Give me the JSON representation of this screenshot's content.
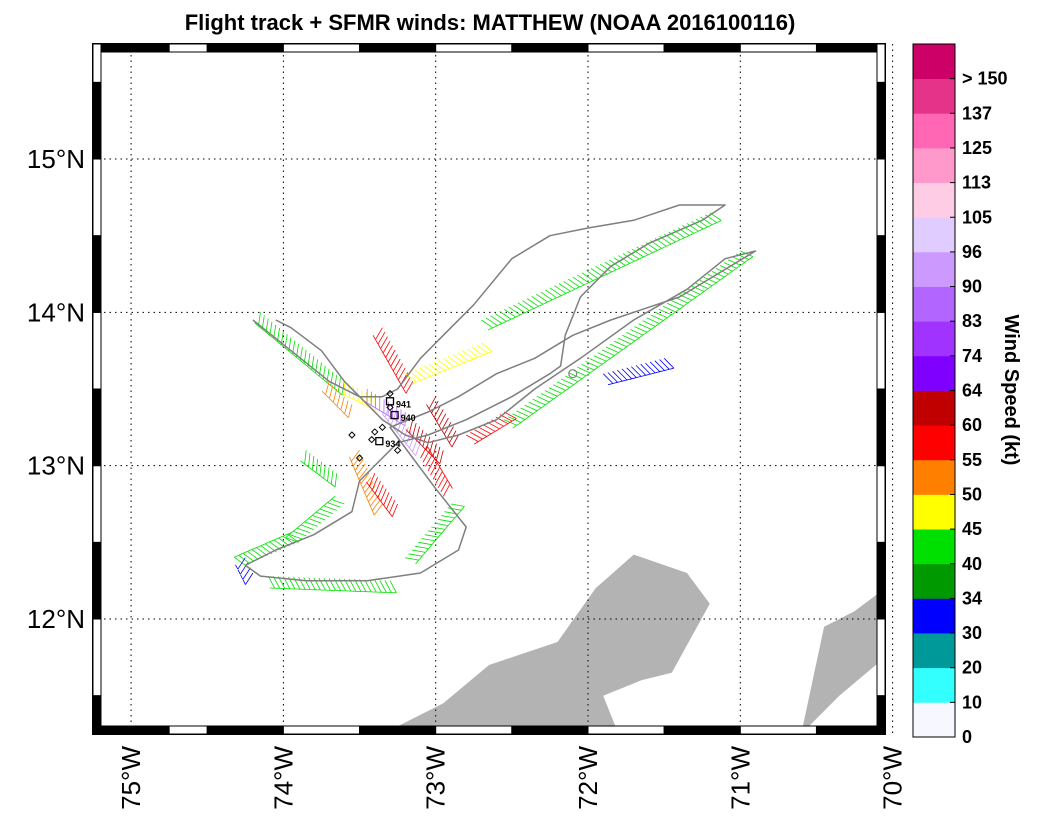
{
  "chart_data": {
    "type": "map",
    "title": "Flight track + SFMR winds: MATTHEW (NOAA 2016100116)",
    "x_ticks": [
      "75°W",
      "74°W",
      "73°W",
      "72°W",
      "71°W",
      "70°W"
    ],
    "x_tick_values": [
      -75,
      -74,
      -73,
      -72,
      -71,
      -70
    ],
    "y_ticks": [
      "12°N",
      "13°N",
      "14°N",
      "15°N"
    ],
    "y_tick_values": [
      12,
      13,
      14,
      15
    ],
    "xlim": [
      -75.25,
      -70.05
    ],
    "ylim": [
      11.25,
      15.75
    ],
    "grid": true,
    "colorbar": {
      "label": "Wind Speed (kt)",
      "levels": [
        "0",
        "10",
        "20",
        "30",
        "34",
        "40",
        "45",
        "50",
        "55",
        "60",
        "64",
        "74",
        "83",
        "90",
        "96",
        "105",
        "113",
        "125",
        "137",
        "> 150"
      ],
      "colors": [
        "#f7f8ff",
        "#33ffff",
        "#009999",
        "#0000ff",
        "#009900",
        "#00e000",
        "#ffff00",
        "#ff8000",
        "#ff0000",
        "#c00000",
        "#8000ff",
        "#a033ff",
        "#b366ff",
        "#cc99ff",
        "#e0ccff",
        "#ffcce6",
        "#ff99cc",
        "#ff66b3",
        "#e6338a",
        "#cc0066"
      ]
    },
    "land": [
      {
        "lon": [
          -73.35,
          -72.95,
          -72.65,
          -72.2,
          -71.95,
          -71.7,
          -71.35,
          -71.2,
          -71.45,
          -71.65,
          -71.9,
          -71.8,
          -73.35
        ],
        "lat": [
          11.25,
          11.45,
          11.7,
          11.85,
          12.2,
          12.42,
          12.3,
          12.1,
          11.65,
          11.6,
          11.5,
          11.25,
          11.25
        ]
      },
      {
        "lon": [
          -70.6,
          -70.35,
          -70.05,
          -70.05,
          -70.25,
          -70.45,
          -70.6
        ],
        "lat": [
          11.25,
          11.5,
          11.75,
          12.2,
          12.05,
          11.95,
          11.25
        ]
      }
    ],
    "flight_track": {
      "lon": [
        -74.2,
        -73.95,
        -73.7,
        -73.5,
        -73.35,
        -73.25,
        -73.1,
        -72.95,
        -72.75,
        -72.5,
        -72.25,
        -72.0,
        -71.7,
        -71.4,
        -71.1,
        -71.25,
        -71.6,
        -71.85,
        -72.05,
        -72.15,
        -72.18,
        -72.25,
        -72.5,
        -72.8,
        -73.05,
        -73.25,
        -73.3,
        -73.5,
        -73.55,
        -73.8,
        -74.05,
        -74.25,
        -74.15,
        -73.85,
        -73.45,
        -73.1,
        -72.85,
        -72.8,
        -73.0,
        -73.15,
        -73.3,
        -73.05,
        -72.85,
        -72.6,
        -72.35,
        -72.1,
        -71.85,
        -71.4,
        -70.9,
        -71.1,
        -71.35,
        -71.7,
        -72.05,
        -72.35,
        -72.6,
        -72.85,
        -73.05,
        -73.2,
        -73.35,
        -73.45,
        -73.6,
        -73.75,
        -73.95,
        -74.05
      ],
      "lat": [
        13.95,
        13.75,
        13.55,
        13.45,
        13.45,
        13.5,
        13.7,
        13.85,
        14.05,
        14.35,
        14.5,
        14.55,
        14.6,
        14.7,
        14.7,
        14.6,
        14.45,
        14.3,
        14.1,
        13.85,
        13.65,
        13.6,
        13.45,
        13.3,
        13.2,
        13.15,
        13.1,
        12.9,
        12.7,
        12.55,
        12.45,
        12.35,
        12.28,
        12.25,
        12.25,
        12.3,
        12.45,
        12.6,
        12.85,
        13.05,
        13.25,
        13.35,
        13.45,
        13.6,
        13.7,
        13.85,
        13.95,
        14.1,
        14.4,
        14.35,
        14.15,
        13.95,
        13.7,
        13.5,
        13.3,
        13.2,
        13.15,
        13.2,
        13.3,
        13.4,
        13.55,
        13.75,
        13.9,
        13.95
      ]
    },
    "sfmr_segments": [
      {
        "lon": [
          -74.15,
          -73.6
        ],
        "lat": [
          14.0,
          13.55
        ],
        "wind_kt": 42
      },
      {
        "lon": [
          -73.6,
          -73.4
        ],
        "lat": [
          13.55,
          13.45
        ],
        "wind_kt": 48
      },
      {
        "lon": [
          -73.45,
          -73.2
        ],
        "lat": [
          13.5,
          13.35
        ],
        "wind_kt": 85
      },
      {
        "lon": [
          -73.3,
          -73.1
        ],
        "lat": [
          13.4,
          13.15
        ],
        "wind_kt": 95
      },
      {
        "lon": [
          -73.15,
          -72.95
        ],
        "lat": [
          13.3,
          13.1
        ],
        "wind_kt": 62
      },
      {
        "lon": [
          -73.35,
          -73.15
        ],
        "lat": [
          13.9,
          13.55
        ],
        "wind_kt": 58
      },
      {
        "lon": [
          -73.2,
          -72.7
        ],
        "lat": [
          13.6,
          13.8
        ],
        "wind_kt": 47
      },
      {
        "lon": [
          -72.7,
          -71.2
        ],
        "lat": [
          13.95,
          14.65
        ],
        "wind_kt": 41
      },
      {
        "lon": [
          -71.9,
          -71.5
        ],
        "lat": [
          13.6,
          13.7
        ],
        "wind_kt": 33
      },
      {
        "lon": [
          -72.55,
          -71.0
        ],
        "lat": [
          13.3,
          14.4
        ],
        "wind_kt": 41
      },
      {
        "lon": [
          -72.8,
          -72.55
        ],
        "lat": [
          13.2,
          13.35
        ],
        "wind_kt": 56
      },
      {
        "lon": [
          -73.5,
          -73.35
        ],
        "lat": [
          13.1,
          12.75
        ],
        "wind_kt": 52
      },
      {
        "lon": [
          -73.6,
          -73.9
        ],
        "lat": [
          12.75,
          12.5
        ],
        "wind_kt": 44
      },
      {
        "lon": [
          -73.9,
          -74.25
        ],
        "lat": [
          12.5,
          12.35
        ],
        "wind_kt": 41
      },
      {
        "lon": [
          -74.25,
          -74.2
        ],
        "lat": [
          12.4,
          12.3
        ],
        "wind_kt": 33
      },
      {
        "lon": [
          -74.1,
          -73.3
        ],
        "lat": [
          12.28,
          12.25
        ],
        "wind_kt": 41
      },
      {
        "lon": [
          -73.2,
          -72.9
        ],
        "lat": [
          12.4,
          12.75
        ],
        "wind_kt": 43
      },
      {
        "lon": [
          -72.95,
          -73.1
        ],
        "lat": [
          12.8,
          13.05
        ],
        "wind_kt": 57
      },
      {
        "lon": [
          -73.4,
          -73.25
        ],
        "lat": [
          12.95,
          12.75
        ],
        "wind_kt": 56
      },
      {
        "lon": [
          -73.7,
          -73.55
        ],
        "lat": [
          13.55,
          13.4
        ],
        "wind_kt": 50
      },
      {
        "lon": [
          -73.0,
          -72.85
        ],
        "lat": [
          13.45,
          13.2
        ],
        "wind_kt": 60
      },
      {
        "lon": [
          -73.85,
          -73.65
        ],
        "lat": [
          13.1,
          12.95
        ],
        "wind_kt": 44
      }
    ],
    "dropsondes": [
      {
        "lon": -73.3,
        "lat": 13.42,
        "label": "941"
      },
      {
        "lon": -73.27,
        "lat": 13.33,
        "label": "940"
      },
      {
        "lon": -73.37,
        "lat": 13.16,
        "label": "934"
      }
    ],
    "center_fixes": [
      {
        "lon": -73.3,
        "lat": 13.47
      },
      {
        "lon": -73.4,
        "lat": 13.22
      },
      {
        "lon": -73.42,
        "lat": 13.17
      },
      {
        "lon": -73.5,
        "lat": 13.05
      },
      {
        "lon": -73.55,
        "lat": 13.2
      },
      {
        "lon": -73.35,
        "lat": 13.25
      },
      {
        "lon": -73.25,
        "lat": 13.1
      },
      {
        "lon": -73.3,
        "lat": 13.38
      }
    ]
  }
}
